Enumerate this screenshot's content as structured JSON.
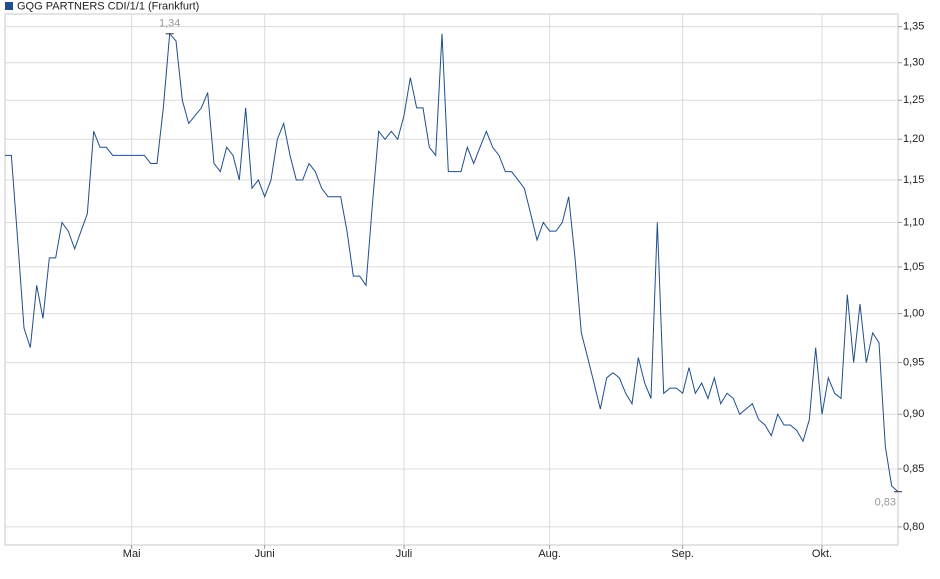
{
  "chart_data": {
    "type": "line",
    "log_scale": true,
    "grid": true,
    "ylim": [
      0.785,
      1.368
    ],
    "yticks": [
      {
        "value": 0.8,
        "label": "0,80"
      },
      {
        "value": 0.85,
        "label": "0,85"
      },
      {
        "value": 0.9,
        "label": "0,90"
      },
      {
        "value": 0.95,
        "label": "0,95"
      },
      {
        "value": 1.0,
        "label": "1,00"
      },
      {
        "value": 1.05,
        "label": "1,05"
      },
      {
        "value": 1.1,
        "label": "1,10"
      },
      {
        "value": 1.15,
        "label": "1,15"
      },
      {
        "value": 1.2,
        "label": "1,20"
      },
      {
        "value": 1.25,
        "label": "1,25"
      },
      {
        "value": 1.3,
        "label": "1,30"
      },
      {
        "value": 1.35,
        "label": "1,35"
      }
    ],
    "categories": [
      null,
      null,
      null,
      null,
      null,
      null,
      null,
      null,
      null,
      null,
      null,
      null,
      null,
      null,
      null,
      null,
      null,
      null,
      null,
      null,
      "Mai",
      null,
      null,
      null,
      null,
      null,
      null,
      null,
      null,
      null,
      null,
      null,
      null,
      null,
      null,
      null,
      null,
      null,
      null,
      null,
      null,
      "Juni",
      null,
      null,
      null,
      null,
      null,
      null,
      null,
      null,
      null,
      null,
      null,
      null,
      null,
      null,
      null,
      null,
      null,
      null,
      null,
      null,
      null,
      "Juli",
      null,
      null,
      null,
      null,
      null,
      null,
      null,
      null,
      null,
      null,
      null,
      null,
      null,
      null,
      null,
      null,
      null,
      null,
      null,
      null,
      null,
      null,
      "Aug.",
      null,
      null,
      null,
      null,
      null,
      null,
      null,
      null,
      null,
      null,
      null,
      null,
      null,
      null,
      null,
      null,
      null,
      null,
      null,
      null,
      "Sep.",
      null,
      null,
      null,
      null,
      null,
      null,
      null,
      null,
      null,
      null,
      null,
      null,
      null,
      null,
      null,
      null,
      null,
      null,
      null,
      null,
      null,
      "Okt.",
      null,
      null,
      null,
      null,
      null,
      null,
      null,
      null,
      null,
      null,
      null,
      null
    ],
    "series": [
      {
        "name": "GQG PARTNERS CDI/1/1 (Frankfurt)",
        "color": "#1f4e8c",
        "values": [
          1.18,
          1.18,
          1.08,
          0.985,
          0.965,
          1.03,
          0.995,
          1.06,
          1.06,
          1.1,
          1.09,
          1.07,
          1.09,
          1.11,
          1.21,
          1.19,
          1.19,
          1.18,
          1.18,
          1.18,
          1.18,
          1.18,
          1.18,
          1.17,
          1.17,
          1.24,
          1.34,
          1.33,
          1.25,
          1.22,
          1.23,
          1.24,
          1.26,
          1.17,
          1.16,
          1.19,
          1.18,
          1.15,
          1.24,
          1.14,
          1.15,
          1.13,
          1.15,
          1.2,
          1.22,
          1.18,
          1.15,
          1.15,
          1.17,
          1.16,
          1.14,
          1.13,
          1.13,
          1.13,
          1.09,
          1.04,
          1.04,
          1.03,
          1.12,
          1.21,
          1.2,
          1.21,
          1.2,
          1.23,
          1.28,
          1.24,
          1.24,
          1.19,
          1.18,
          1.34,
          1.16,
          1.16,
          1.16,
          1.19,
          1.17,
          1.19,
          1.21,
          1.19,
          1.18,
          1.16,
          1.16,
          1.15,
          1.14,
          1.11,
          1.08,
          1.1,
          1.09,
          1.09,
          1.1,
          1.13,
          1.06,
          0.98,
          0.955,
          0.93,
          0.905,
          0.935,
          0.94,
          0.935,
          0.92,
          0.91,
          0.955,
          0.93,
          0.915,
          1.1,
          0.92,
          0.925,
          0.925,
          0.92,
          0.945,
          0.92,
          0.93,
          0.915,
          0.935,
          0.91,
          0.92,
          0.915,
          0.9,
          0.905,
          0.91,
          0.895,
          0.89,
          0.88,
          0.9,
          0.89,
          0.89,
          0.885,
          0.875,
          0.895,
          0.965,
          0.9,
          0.935,
          0.92,
          0.915,
          1.02,
          0.95,
          1.01,
          0.95,
          0.98,
          0.97,
          0.87,
          0.835,
          0.83
        ],
        "value_labels": [
          null,
          null,
          null,
          null,
          null,
          null,
          null,
          null,
          null,
          null,
          null,
          null,
          null,
          null,
          null,
          null,
          null,
          null,
          null,
          null,
          null,
          null,
          null,
          null,
          null,
          null,
          "1,34",
          null,
          null,
          null,
          null,
          null,
          null,
          null,
          null,
          null,
          null,
          null,
          null,
          null,
          null,
          null,
          null,
          null,
          null,
          null,
          null,
          null,
          null,
          null,
          null,
          null,
          null,
          null,
          null,
          null,
          null,
          null,
          null,
          null,
          null,
          null,
          null,
          null,
          null,
          null,
          null,
          null,
          null,
          null,
          null,
          null,
          null,
          null,
          null,
          null,
          null,
          null,
          null,
          null,
          null,
          null,
          null,
          null,
          null,
          null,
          null,
          null,
          null,
          null,
          null,
          null,
          null,
          null,
          null,
          null,
          null,
          null,
          null,
          null,
          null,
          null,
          null,
          null,
          null,
          null,
          null,
          null,
          null,
          null,
          null,
          null,
          null,
          null,
          null,
          null,
          null,
          null,
          null,
          null,
          null,
          null,
          null,
          null,
          null,
          null,
          null,
          null,
          null,
          null,
          null,
          null,
          null,
          null,
          null,
          null,
          null,
          null,
          null,
          null,
          null,
          "0,83"
        ]
      }
    ]
  }
}
